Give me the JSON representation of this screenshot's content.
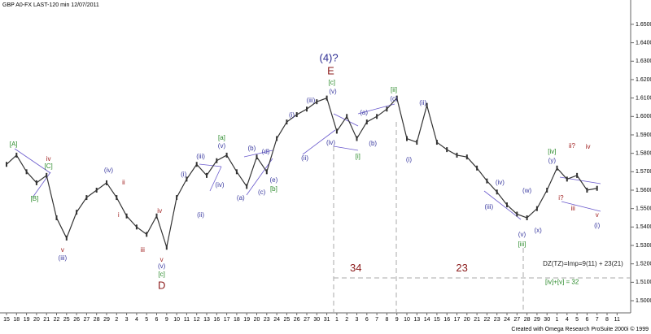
{
  "chart_data": {
    "type": "line",
    "title": "GBP A0-FX LAST-120 min   12/07/2011",
    "footer": "Created with Omega Research ProSuite 2000i © 1999",
    "categories": [
      "15",
      "18",
      "19",
      "20",
      "21",
      "22",
      "25",
      "26",
      "27",
      "28",
      "29",
      "2",
      "3",
      "4",
      "5",
      "6",
      "9",
      "10",
      "11",
      "12",
      "13",
      "16",
      "17",
      "18",
      "19",
      "20",
      "23",
      "24",
      "25",
      "26",
      "27",
      "30",
      "31",
      "1",
      "2",
      "3",
      "6",
      "7",
      "8",
      "9",
      "10",
      "13",
      "14",
      "15",
      "16",
      "17",
      "20",
      "21",
      "22",
      "23",
      "24",
      "27",
      "28",
      "29",
      "30",
      "1",
      "4",
      "5",
      "6",
      "7",
      "8",
      "11"
    ],
    "values": [
      1.574,
      1.579,
      1.57,
      1.564,
      1.568,
      1.545,
      1.534,
      1.548,
      1.556,
      1.56,
      1.564,
      1.556,
      1.546,
      1.54,
      1.536,
      1.546,
      1.529,
      1.556,
      1.566,
      1.574,
      1.568,
      1.576,
      1.579,
      1.57,
      1.562,
      1.578,
      1.57,
      1.588,
      1.597,
      1.601,
      1.604,
      1.608,
      1.61,
      1.592,
      1.6,
      1.588,
      1.597,
      1.6,
      1.604,
      1.61,
      1.588,
      1.586,
      1.606,
      1.586,
      1.582,
      1.579,
      1.578,
      1.572,
      1.565,
      1.559,
      1.552,
      1.547,
      1.545,
      1.55,
      1.56,
      1.572,
      1.566,
      1.568,
      1.56,
      1.561,
      null,
      null
    ],
    "color": "#333333",
    "ylim": [
      1.4934,
      1.661
    ],
    "yticks": [
      {
        "value": 1.5,
        "label": "1.5000"
      },
      {
        "value": 1.51,
        "label": "1.5100"
      },
      {
        "value": 1.52,
        "label": "1.5200"
      },
      {
        "value": 1.53,
        "label": "1.5300"
      },
      {
        "value": 1.54,
        "label": "1.5400"
      },
      {
        "value": 1.55,
        "label": "1.5500"
      },
      {
        "value": 1.56,
        "label": "1.5600"
      },
      {
        "value": 1.57,
        "label": "1.5700"
      },
      {
        "value": 1.58,
        "label": "1.5800"
      },
      {
        "value": 1.59,
        "label": "1.5900"
      },
      {
        "value": 1.6,
        "label": "1.6000"
      },
      {
        "value": 1.61,
        "label": "1.6100"
      },
      {
        "value": 1.62,
        "label": "1.6200"
      },
      {
        "value": 1.63,
        "label": "1.6300"
      },
      {
        "value": 1.64,
        "label": "1.6400"
      },
      {
        "value": 1.65,
        "label": "1.6500"
      }
    ],
    "annotations": [
      {
        "text": "[A]",
        "x": 0.7,
        "y": 1.5847,
        "color": "#2a8a2a"
      },
      {
        "text": "[B]",
        "x": 2.8,
        "y": 1.5552,
        "color": "#2a8a2a"
      },
      {
        "text": "[C]",
        "x": 4.2,
        "y": 1.5728,
        "color": "#2a8a2a"
      },
      {
        "text": "iv",
        "x": 4.2,
        "y": 1.5768,
        "color": "#a02020"
      },
      {
        "text": "v",
        "x": 5.6,
        "y": 1.5274,
        "color": "#a02020"
      },
      {
        "text": "(iii)",
        "x": 5.6,
        "y": 1.523,
        "color": "#3a3aa0"
      },
      {
        "text": "(iv)",
        "x": 10.2,
        "y": 1.5706,
        "color": "#3a3aa0"
      },
      {
        "text": "ii",
        "x": 11.7,
        "y": 1.564,
        "color": "#a02020"
      },
      {
        "text": "i",
        "x": 11.2,
        "y": 1.5464,
        "color": "#a02020"
      },
      {
        "text": "iii",
        "x": 13.6,
        "y": 1.5274,
        "color": "#a02020"
      },
      {
        "text": "iv",
        "x": 15.3,
        "y": 1.5486,
        "color": "#a02020"
      },
      {
        "text": "v",
        "x": 15.5,
        "y": 1.5221,
        "color": "#a02020"
      },
      {
        "text": "(v)",
        "x": 15.5,
        "y": 1.5186,
        "color": "#3a3aa0"
      },
      {
        "text": "[c]",
        "x": 15.5,
        "y": 1.5142,
        "color": "#2a8a2a"
      },
      {
        "text": "D",
        "x": 15.5,
        "y": 1.508,
        "color": "#8b1a1a",
        "big": true
      },
      {
        "text": "(i)",
        "x": 17.7,
        "y": 1.5684,
        "color": "#3a3aa0"
      },
      {
        "text": "(ii)",
        "x": 19.4,
        "y": 1.5464,
        "color": "#3a3aa0"
      },
      {
        "text": "(iii)",
        "x": 19.4,
        "y": 1.5781,
        "color": "#3a3aa0"
      },
      {
        "text": "(iv)",
        "x": 21.3,
        "y": 1.5627,
        "color": "#3a3aa0"
      },
      {
        "text": "[a]",
        "x": 21.5,
        "y": 1.5883,
        "color": "#2a8a2a"
      },
      {
        "text": "(v)",
        "x": 21.5,
        "y": 1.5839,
        "color": "#3a3aa0"
      },
      {
        "text": "(b)",
        "x": 24.5,
        "y": 1.5825,
        "color": "#3a3aa0"
      },
      {
        "text": "(d)",
        "x": 25.9,
        "y": 1.5808,
        "color": "#3a3aa0"
      },
      {
        "text": "(a)",
        "x": 23.4,
        "y": 1.5556,
        "color": "#3a3aa0"
      },
      {
        "text": "(c)",
        "x": 25.5,
        "y": 1.5587,
        "color": "#3a3aa0"
      },
      {
        "text": "(e)",
        "x": 26.7,
        "y": 1.5653,
        "color": "#3a3aa0"
      },
      {
        "text": "[b]",
        "x": 26.7,
        "y": 1.5605,
        "color": "#2a8a2a"
      },
      {
        "text": "(i)",
        "x": 28.5,
        "y": 1.6006,
        "color": "#3a3aa0"
      },
      {
        "text": "(iii)",
        "x": 30.4,
        "y": 1.6085,
        "color": "#3a3aa0"
      },
      {
        "text": "(ii)",
        "x": 29.8,
        "y": 1.5772,
        "color": "#3a3aa0"
      },
      {
        "text": "(iv)",
        "x": 32.4,
        "y": 1.5856,
        "color": "#3a3aa0"
      },
      {
        "text": "(v)",
        "x": 32.6,
        "y": 1.6134,
        "color": "#3a3aa0"
      },
      {
        "text": "[c]",
        "x": 32.5,
        "y": 1.6182,
        "color": "#2a8a2a"
      },
      {
        "text": "E",
        "x": 32.4,
        "y": 1.6244,
        "color": "#8b1a1a",
        "big": true
      },
      {
        "text": "(4)?",
        "x": 32.2,
        "y": 1.6315,
        "color": "#2a2a90",
        "big": true
      },
      {
        "text": "(a)",
        "x": 35.7,
        "y": 1.6019,
        "color": "#3a3aa0"
      },
      {
        "text": "(b)",
        "x": 36.6,
        "y": 1.5852,
        "color": "#3a3aa0"
      },
      {
        "text": "[i]",
        "x": 35.1,
        "y": 1.5781,
        "color": "#2a8a2a"
      },
      {
        "text": "(c)",
        "x": 38.7,
        "y": 1.6094,
        "color": "#3a3aa0"
      },
      {
        "text": "[ii]",
        "x": 38.7,
        "y": 1.6143,
        "color": "#2a8a2a"
      },
      {
        "text": "(ii)",
        "x": 41.6,
        "y": 1.6072,
        "color": "#3a3aa0"
      },
      {
        "text": "(i)",
        "x": 40.2,
        "y": 1.5764,
        "color": "#3a3aa0"
      },
      {
        "text": "(iv)",
        "x": 49.3,
        "y": 1.564,
        "color": "#3a3aa0"
      },
      {
        "text": "(iii)",
        "x": 48.2,
        "y": 1.5508,
        "color": "#3a3aa0"
      },
      {
        "text": "(v)",
        "x": 51.5,
        "y": 1.5358,
        "color": "#3a3aa0"
      },
      {
        "text": "[iii]",
        "x": 51.5,
        "y": 1.5305,
        "color": "#2a8a2a"
      },
      {
        "text": "(w)",
        "x": 52.0,
        "y": 1.5596,
        "color": "#3a3aa0"
      },
      {
        "text": "(x)",
        "x": 53.1,
        "y": 1.538,
        "color": "#3a3aa0"
      },
      {
        "text": "(y)",
        "x": 54.5,
        "y": 1.5759,
        "color": "#3a3aa0"
      },
      {
        "text": "[iv]",
        "x": 54.5,
        "y": 1.5808,
        "color": "#2a8a2a"
      },
      {
        "text": "ii?",
        "x": 56.5,
        "y": 1.5839,
        "color": "#a02020"
      },
      {
        "text": "iv",
        "x": 58.1,
        "y": 1.5834,
        "color": "#a02020"
      },
      {
        "text": "i?",
        "x": 55.4,
        "y": 1.5556,
        "color": "#a02020"
      },
      {
        "text": "iii",
        "x": 56.6,
        "y": 1.5499,
        "color": "#a02020"
      },
      {
        "text": "v",
        "x": 59.0,
        "y": 1.5464,
        "color": "#a02020"
      },
      {
        "text": "(i)",
        "x": 59.0,
        "y": 1.5406,
        "color": "#3a3aa0"
      },
      {
        "text": "34",
        "x": 34.9,
        "y": 1.5175,
        "color": "#8b1a1a",
        "big": true
      },
      {
        "text": "23",
        "x": 45.5,
        "y": 1.5175,
        "color": "#8b1a1a",
        "big": true
      },
      {
        "text": "DZ(TZ)=Imp=9(11) + 23(21)",
        "x": 57.6,
        "y": 1.52,
        "color": "#222222"
      },
      {
        "text": "[iv]+[v] = 32",
        "x": 55.5,
        "y": 1.51,
        "color": "#2a8a2a"
      }
    ]
  }
}
